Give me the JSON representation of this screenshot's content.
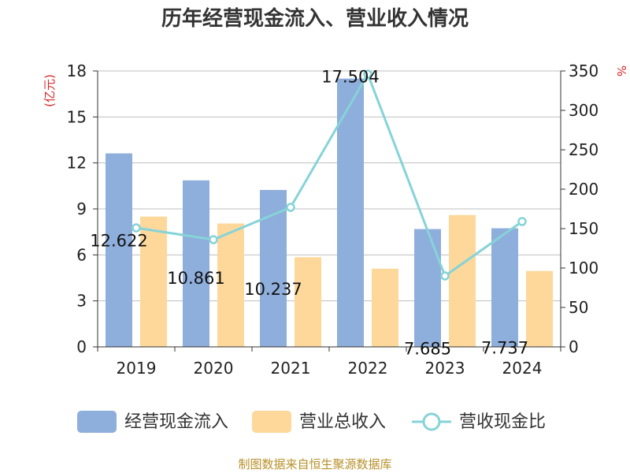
{
  "title": "历年经营现金流入、营业收入情况",
  "source": "制图数据来自恒生聚源数据库",
  "colors": {
    "cash_inflow": "#8eaedb",
    "revenue": "#fdd89a",
    "ratio": "#86d3d8",
    "unit": "#d62728",
    "source": "#b8902a"
  },
  "legend": {
    "cash_inflow": "经营现金流入",
    "revenue": "营业总收入",
    "ratio": "营收现金比"
  },
  "chart_data": {
    "type": "bar",
    "title": "历年经营现金流入、营业收入情况",
    "categories": [
      "2019",
      "2020",
      "2021",
      "2022",
      "2023",
      "2024"
    ],
    "left_axis": {
      "unit": "(亿元)",
      "ylim": [
        0,
        18
      ],
      "ticks": [
        0,
        3,
        6,
        9,
        12,
        15,
        18
      ]
    },
    "right_axis": {
      "unit": "%",
      "ylim": [
        0,
        350
      ],
      "ticks": [
        0,
        50,
        100,
        150,
        200,
        250,
        300,
        350
      ]
    },
    "series": [
      {
        "name": "经营现金流入",
        "type": "bar",
        "axis": "left",
        "values": [
          12.622,
          10.861,
          10.237,
          17.504,
          7.685,
          7.737
        ],
        "labels": [
          "12.622",
          "10.861",
          "10.237",
          "17.504",
          "7.685",
          "7.737"
        ]
      },
      {
        "name": "营业总收入",
        "type": "bar",
        "axis": "left",
        "values": [
          8.5,
          8.05,
          5.85,
          5.1,
          8.6,
          4.95
        ]
      },
      {
        "name": "营收现金比",
        "type": "line",
        "axis": "right",
        "values": [
          151,
          136,
          177,
          346,
          90,
          159
        ]
      }
    ],
    "grid": true,
    "legend_position": "bottom"
  }
}
